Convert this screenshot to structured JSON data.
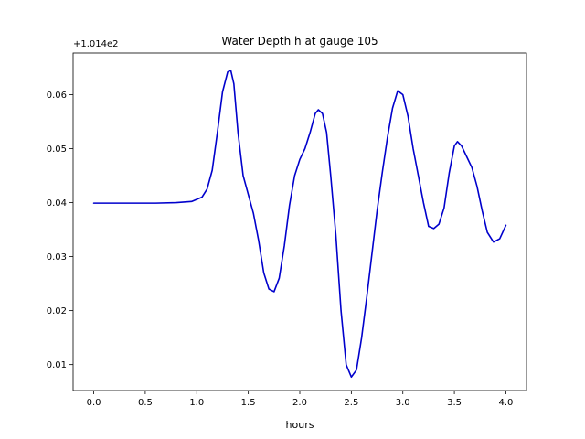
{
  "chart_data": {
    "type": "line",
    "title": "Water Depth h at gauge 105",
    "xlabel": "hours",
    "ylabel": "",
    "offset_label": "+1.014e2",
    "offset_value": 101.4,
    "xlim": [
      -0.2,
      4.2
    ],
    "ylim": [
      0.0052,
      0.0677
    ],
    "xticks": [
      0.0,
      0.5,
      1.0,
      1.5,
      2.0,
      2.5,
      3.0,
      3.5,
      4.0
    ],
    "xtick_labels": [
      "0.0",
      "0.5",
      "1.0",
      "1.5",
      "2.0",
      "2.5",
      "3.0",
      "3.5",
      "4.0"
    ],
    "yticks": [
      0.01,
      0.02,
      0.03,
      0.04,
      0.05,
      0.06
    ],
    "ytick_labels": [
      "0.01",
      "0.02",
      "0.03",
      "0.04",
      "0.05",
      "0.06"
    ],
    "grid": false,
    "line_color": "#0000cc",
    "series": [
      {
        "x": [
          0.0,
          0.3,
          0.6,
          0.8,
          0.95,
          1.05,
          1.1,
          1.15,
          1.2,
          1.25,
          1.3,
          1.33,
          1.36,
          1.4,
          1.45,
          1.5,
          1.55,
          1.6,
          1.65,
          1.7,
          1.75,
          1.8,
          1.85,
          1.9,
          1.95,
          2.0,
          2.05,
          2.1,
          2.15,
          2.18,
          2.22,
          2.26,
          2.3,
          2.35,
          2.4,
          2.45,
          2.5,
          2.55,
          2.6,
          2.65,
          2.7,
          2.75,
          2.8,
          2.85,
          2.9,
          2.95,
          3.0,
          3.05,
          3.1,
          3.15,
          3.2,
          3.25,
          3.3,
          3.35,
          3.4,
          3.45,
          3.5,
          3.53,
          3.57,
          3.62,
          3.67,
          3.72,
          3.77,
          3.82,
          3.88,
          3.94,
          4.0
        ],
        "y": [
          0.0399,
          0.0399,
          0.0399,
          0.04,
          0.0402,
          0.041,
          0.0425,
          0.046,
          0.053,
          0.0605,
          0.0642,
          0.0645,
          0.062,
          0.053,
          0.045,
          0.0415,
          0.038,
          0.033,
          0.027,
          0.024,
          0.0235,
          0.026,
          0.032,
          0.0395,
          0.045,
          0.048,
          0.05,
          0.053,
          0.0565,
          0.0572,
          0.0565,
          0.053,
          0.045,
          0.034,
          0.02,
          0.01,
          0.0077,
          0.009,
          0.015,
          0.0225,
          0.0305,
          0.0385,
          0.0455,
          0.052,
          0.0575,
          0.0607,
          0.06,
          0.056,
          0.05,
          0.045,
          0.04,
          0.0356,
          0.0352,
          0.036,
          0.039,
          0.0455,
          0.0505,
          0.0513,
          0.0505,
          0.0485,
          0.0465,
          0.043,
          0.0385,
          0.0345,
          0.0327,
          0.0333,
          0.0358
        ]
      }
    ]
  }
}
